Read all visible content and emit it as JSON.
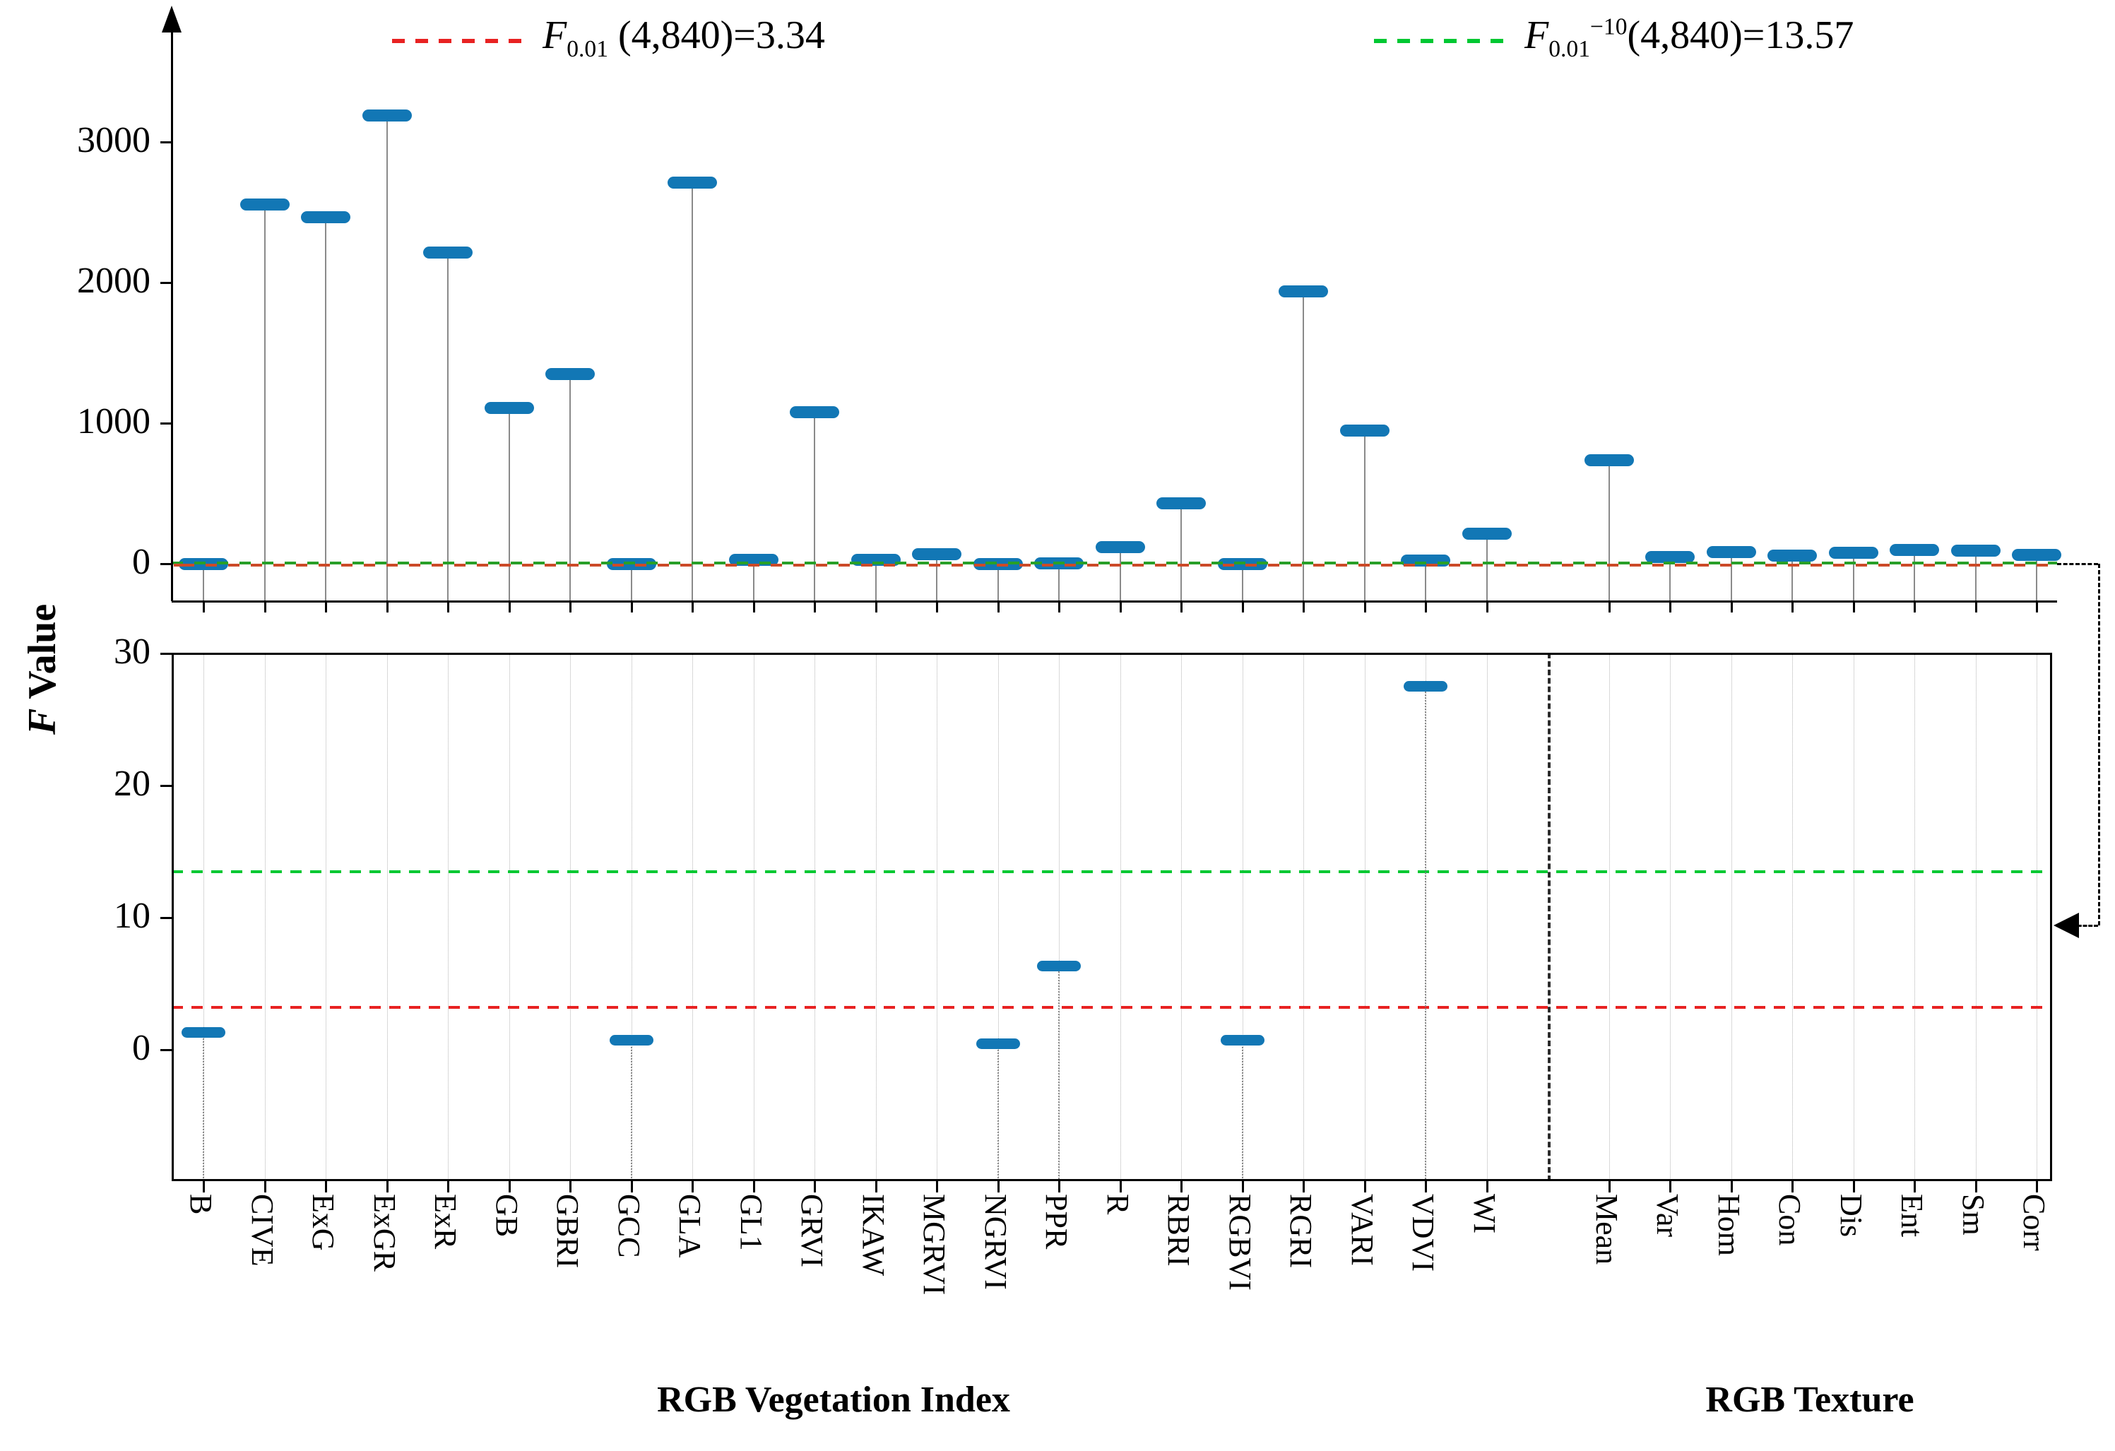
{
  "figure": {
    "ylabel": {
      "italic_part": "F",
      "rest_part": " Value"
    },
    "legend_red": {
      "f": "F",
      "sub": "0.01",
      "sup": "",
      "rest": " (4,840)=3.34"
    },
    "legend_green": {
      "f": "F",
      "sub": "0.01",
      "sup": "−10",
      "rest": "(4,840)=13.57"
    },
    "x_axis_titles": [
      "RGB Vegetation Index",
      "RGB Texture"
    ]
  },
  "chart_data": {
    "type": "stem",
    "title": "",
    "ylabel": "F Value",
    "categories": [
      "B",
      "CIVE",
      "ExG",
      "ExGR",
      "ExR",
      "GB",
      "GBRI",
      "GCC",
      "GLA",
      "GL1",
      "GRVI",
      "IKAW",
      "MGRVI",
      "NGRVI",
      "PPR",
      "R",
      "RBRI",
      "RGBVI",
      "RGRI",
      "VARI",
      "VDVI",
      "WI",
      "Mean",
      "Var",
      "Hom",
      "Con",
      "Dis",
      "Ent",
      "Sm",
      "Corr"
    ],
    "values": [
      1.3,
      2560,
      2465,
      3190,
      2215,
      1110,
      1350,
      0.7,
      2715,
      32,
      1080,
      32,
      70,
      0.45,
      6.3,
      120,
      430,
      0.7,
      1940,
      950,
      27.5,
      215,
      740,
      50,
      85,
      58,
      78,
      100,
      93,
      65
    ],
    "groups": [
      {
        "label": "RGB Vegetation Index",
        "from_index": 0,
        "to_index": 21
      },
      {
        "label": "RGB Texture",
        "from_index": 22,
        "to_index": 29
      }
    ],
    "thresholds": [
      {
        "value": 3.34,
        "color": "#e82222",
        "style": "dashed",
        "label": "F0.01 (4,840)=3.34"
      },
      {
        "value": 13.57,
        "color": "#00c832",
        "style": "dashed",
        "label": "F0.01^-10(4,840)=13.57"
      }
    ],
    "panels": [
      {
        "id": "top",
        "yticks": [
          0,
          1000,
          2000,
          3000
        ],
        "ylim": [
          -280,
          3900
        ],
        "grid": false,
        "note": "all 30 stems shown; zero line drawn as overlapping red+green dashes"
      },
      {
        "id": "bottom",
        "yticks": [
          0,
          10,
          20,
          30
        ],
        "ylim": [
          -10,
          30
        ],
        "grid": "vertical-dotted",
        "note": "zoomed view; only values below 30 show markers",
        "visible_categories": [
          "B",
          "GCC",
          "NGRVI",
          "PPR",
          "RGBVI",
          "VDVI"
        ]
      }
    ],
    "divider_between": [
      "WI",
      "Mean"
    ],
    "marker_color": "#1277b5",
    "stem_color": "#8a8a8a",
    "legend_position": "top"
  }
}
